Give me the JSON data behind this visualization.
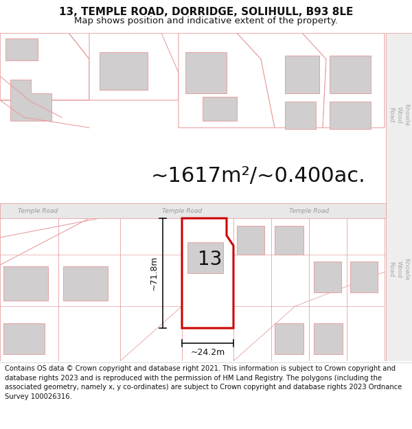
{
  "title": "13, TEMPLE ROAD, DORRIDGE, SOLIHULL, B93 8LE",
  "subtitle": "Map shows position and indicative extent of the property.",
  "area_text": "~1617m²/~0.400ac.",
  "dim_height": "~71.8m",
  "dim_width": "~24.2m",
  "label_number": "13",
  "footer": "Contains OS data © Crown copyright and database right 2021. This information is subject to Crown copyright and database rights 2023 and is reproduced with the permission of HM Land Registry. The polygons (including the associated geometry, namely x, y co-ordinates) are subject to Crown copyright and database rights 2023 Ordnance Survey 100026316.",
  "bg_color": "#ffffff",
  "outline_color": "#e8a0a0",
  "highlight_color": "#cc0000",
  "road_fill": "#e8e8e8",
  "building_fill": "#d0cece",
  "text_color": "#111111",
  "road_text_color": "#888888",
  "title_fontsize": 11,
  "subtitle_fontsize": 9.5,
  "area_fontsize": 22,
  "label_fontsize": 20,
  "footer_fontsize": 7.2,
  "kwr_text_color": "#aaaaaa"
}
